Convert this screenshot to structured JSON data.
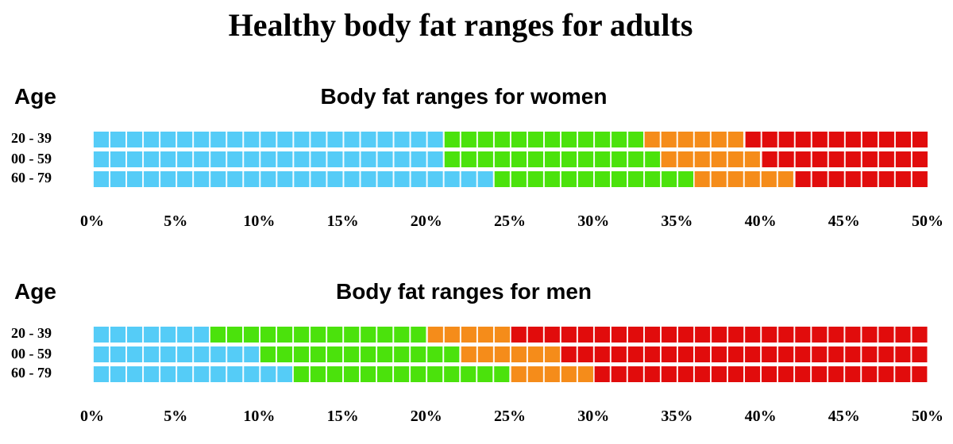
{
  "title": "Healthy body fat ranges for adults",
  "colors": {
    "underfat": "#55ccf7",
    "healthy": "#4be20c",
    "overweight": "#f58c1a",
    "obese": "#e10c0c"
  },
  "charts": [
    {
      "age_label": "Age",
      "title": "Body fat ranges for women",
      "rows": [
        {
          "label": "20 - 39",
          "breaks": [
            21,
            33,
            39,
            50
          ]
        },
        {
          "label": "00 - 59",
          "breaks": [
            21,
            34,
            40,
            50
          ]
        },
        {
          "label": "60 - 79",
          "breaks": [
            24,
            36,
            42,
            50
          ]
        }
      ],
      "ticks": [
        "0%",
        "5%",
        "10%",
        "15%",
        "20%",
        "25%",
        "30%",
        "35%",
        "40%",
        "45%",
        "50%"
      ]
    },
    {
      "age_label": "Age",
      "title": "Body fat ranges for men",
      "rows": [
        {
          "label": "20 - 39",
          "breaks": [
            7,
            20,
            25,
            50
          ]
        },
        {
          "label": "00 - 59",
          "breaks": [
            10,
            22,
            28,
            50
          ]
        },
        {
          "label": "60 - 79",
          "breaks": [
            12,
            25,
            30,
            50
          ]
        }
      ],
      "ticks": [
        "0%",
        "5%",
        "10%",
        "15%",
        "20%",
        "25%",
        "30%",
        "35%",
        "40%",
        "45%",
        "50%"
      ]
    }
  ],
  "chart_data": [
    {
      "type": "bar",
      "title": "Body fat ranges for women",
      "ylabel": "Age",
      "categories": [
        "20 - 39",
        "00 - 59",
        "60 - 79"
      ],
      "xlim": [
        0,
        50
      ],
      "series": [
        {
          "values": [
            21,
            21,
            24
          ]
        },
        {
          "values": [
            12,
            13,
            12
          ]
        },
        {
          "values": [
            6,
            6,
            6
          ]
        },
        {
          "values": [
            11,
            10,
            8
          ]
        }
      ]
    },
    {
      "type": "bar",
      "title": "Body fat ranges for men",
      "ylabel": "Age",
      "categories": [
        "20 - 39",
        "00 - 59",
        "60 - 79"
      ],
      "xlim": [
        0,
        50
      ],
      "series": [
        {
          "values": [
            7,
            10,
            12
          ]
        },
        {
          "values": [
            13,
            12,
            13
          ]
        },
        {
          "values": [
            5,
            6,
            5
          ]
        },
        {
          "values": [
            25,
            22,
            20
          ]
        }
      ]
    }
  ]
}
